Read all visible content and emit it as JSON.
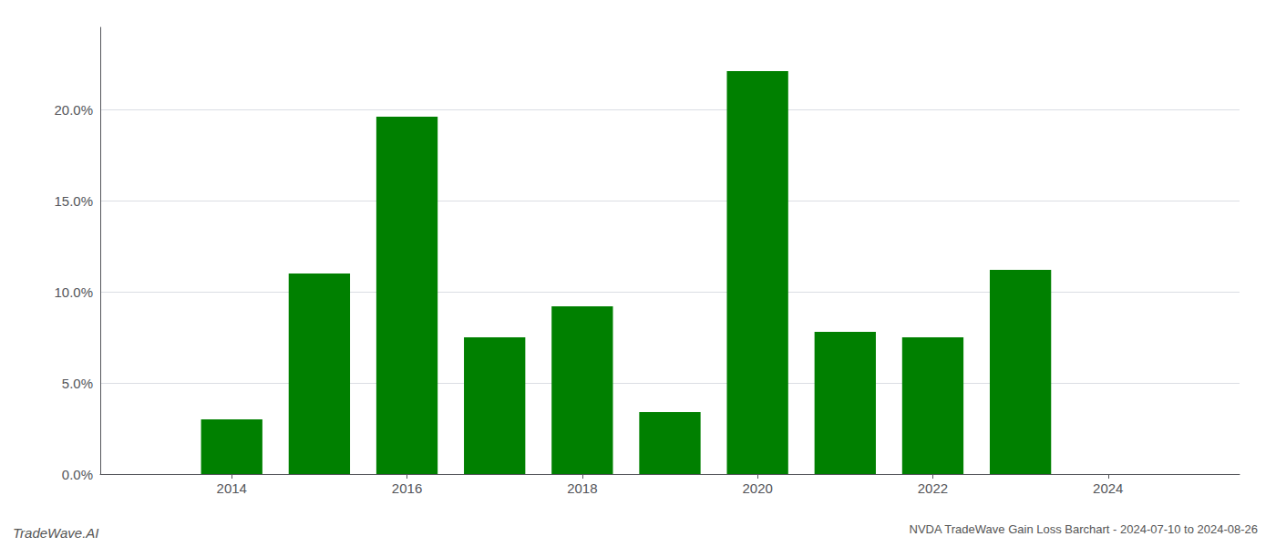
{
  "chart_data": {
    "type": "bar",
    "title": "NVDA TradeWave Gain Loss Barchart - 2024-07-10 to 2024-08-26",
    "annotations": [
      "TradeWave.AI"
    ],
    "x": [
      2014,
      2015,
      2016,
      2017,
      2018,
      2019,
      2020,
      2021,
      2022,
      2023
    ],
    "values": [
      0.03,
      0.11,
      0.196,
      0.075,
      0.092,
      0.034,
      0.221,
      0.078,
      0.075,
      0.112
    ],
    "color": "#008000",
    "xlim": [
      2012.5,
      2025.5
    ],
    "xticks": [
      2014,
      2016,
      2018,
      2020,
      2022,
      2024
    ],
    "ylim": [
      0.0,
      0.245
    ],
    "yticks": [
      {
        "value": 0.0,
        "label": "0.0%"
      },
      {
        "value": 0.05,
        "label": "5.0%"
      },
      {
        "value": 0.1,
        "label": "10.0%"
      },
      {
        "value": 0.15,
        "label": "15.0%"
      },
      {
        "value": 0.2,
        "label": "20.0%"
      }
    ],
    "grid": true
  }
}
